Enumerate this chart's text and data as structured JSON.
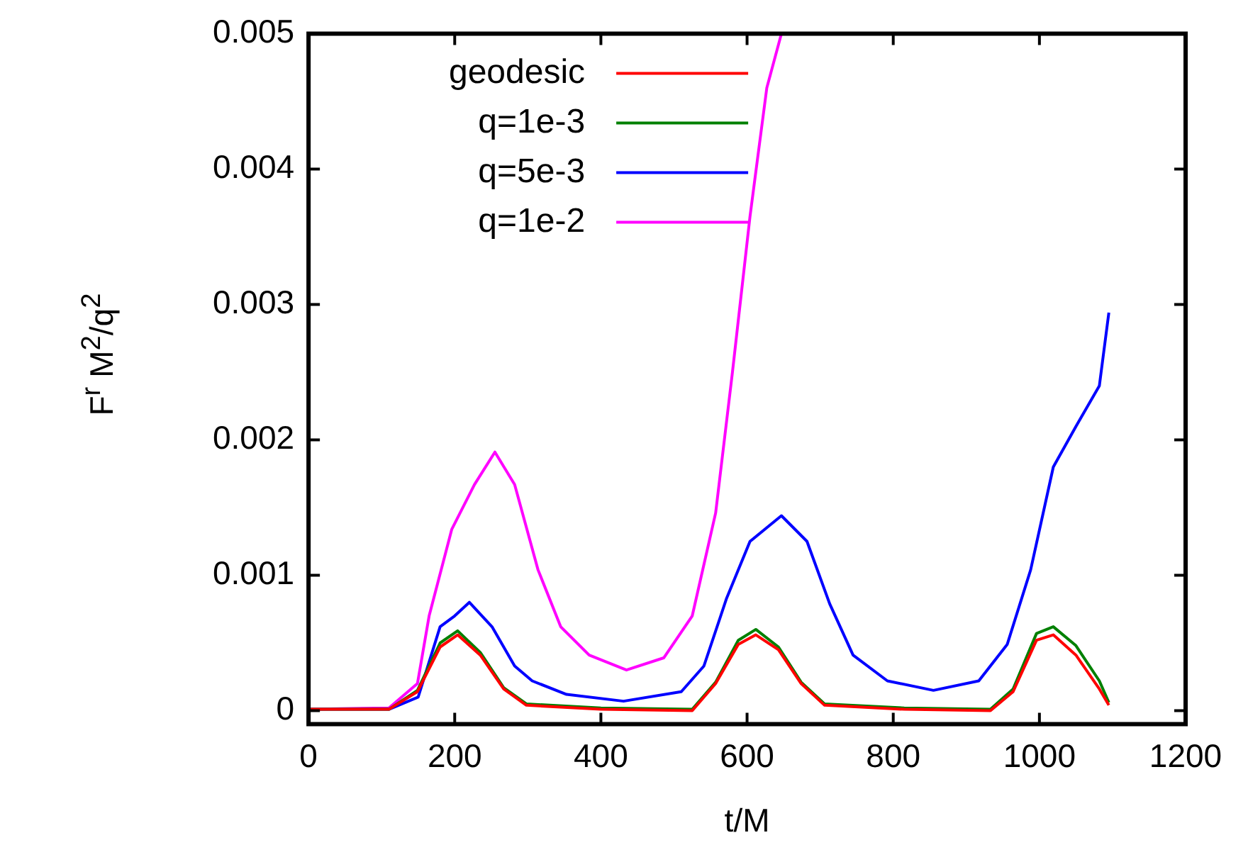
{
  "chart_data": {
    "type": "line",
    "xlabel": "t/M",
    "ylabel": "F$^{r}$ M$^{2}$/q$^{2}$",
    "xlim": [
      0,
      1200
    ],
    "xticks": [
      0,
      200,
      400,
      600,
      800,
      1000,
      1200
    ],
    "ylim": [
      -0.0001,
      0.005
    ],
    "yticks": [
      0,
      0.001,
      0.002,
      0.003,
      0.004,
      0.005
    ],
    "legend": "top left",
    "grid": false,
    "series": [
      {
        "name": "geodesic",
        "color": "#ff0000",
        "x": [
          0,
          110,
          149,
          180,
          204,
          235,
          267,
          298,
          400,
          525,
          557,
          588,
          612,
          643,
          674,
          706,
          815,
          933,
          964,
          996,
          1019,
          1050,
          1082,
          1095
        ],
        "values": [
          1e-05,
          1e-05,
          0.00014,
          0.00047,
          0.00056,
          0.00041,
          0.00016,
          4e-05,
          1e-05,
          0,
          0.0002,
          0.00049,
          0.00056,
          0.00045,
          0.0002,
          4e-05,
          1e-05,
          0,
          0.00014,
          0.00052,
          0.00056,
          0.00041,
          0.00016,
          4e-05
        ]
      },
      {
        "name": "q=1e-3",
        "color": "#008000",
        "x": [
          0,
          110,
          149,
          180,
          204,
          235,
          267,
          298,
          400,
          525,
          557,
          588,
          612,
          643,
          674,
          706,
          815,
          933,
          964,
          996,
          1019,
          1050,
          1082,
          1095
        ],
        "values": [
          1e-05,
          1e-05,
          0.00015,
          0.0005,
          0.00059,
          0.00043,
          0.00017,
          5e-05,
          2e-05,
          1e-05,
          0.00021,
          0.00052,
          0.0006,
          0.00047,
          0.00021,
          5e-05,
          2e-05,
          1e-05,
          0.00016,
          0.00057,
          0.00062,
          0.00048,
          0.00022,
          6e-05
        ]
      },
      {
        "name": "q=5e-3",
        "color": "#0000ff",
        "x": [
          0,
          110,
          150,
          180,
          200,
          220,
          251,
          282,
          306,
          353,
          431,
          510,
          541,
          572,
          604,
          647,
          682,
          713,
          745,
          792,
          855,
          917,
          956,
          988,
          1019,
          1050,
          1082,
          1095
        ],
        "values": [
          1e-05,
          1e-05,
          0.0001,
          0.00062,
          0.0007,
          0.0008,
          0.00062,
          0.00033,
          0.00022,
          0.00012,
          7e-05,
          0.00014,
          0.00033,
          0.00083,
          0.00125,
          0.00144,
          0.00125,
          0.00079,
          0.00041,
          0.00022,
          0.00015,
          0.00022,
          0.00049,
          0.00104,
          0.0018,
          0.0021,
          0.0024,
          0.00294
        ]
      },
      {
        "name": "q=1e-2",
        "color": "#ff00ff",
        "x": [
          0,
          110,
          149,
          165,
          196,
          227,
          255,
          282,
          314,
          345,
          384,
          435,
          486,
          525,
          557,
          580,
          604,
          627,
          647
        ],
        "values": [
          1e-05,
          2e-05,
          0.0002,
          0.0007,
          0.00134,
          0.00167,
          0.00191,
          0.00167,
          0.00104,
          0.00062,
          0.00041,
          0.0003,
          0.00039,
          0.0007,
          0.00146,
          0.0025,
          0.00365,
          0.0046,
          0.005
        ]
      }
    ]
  }
}
